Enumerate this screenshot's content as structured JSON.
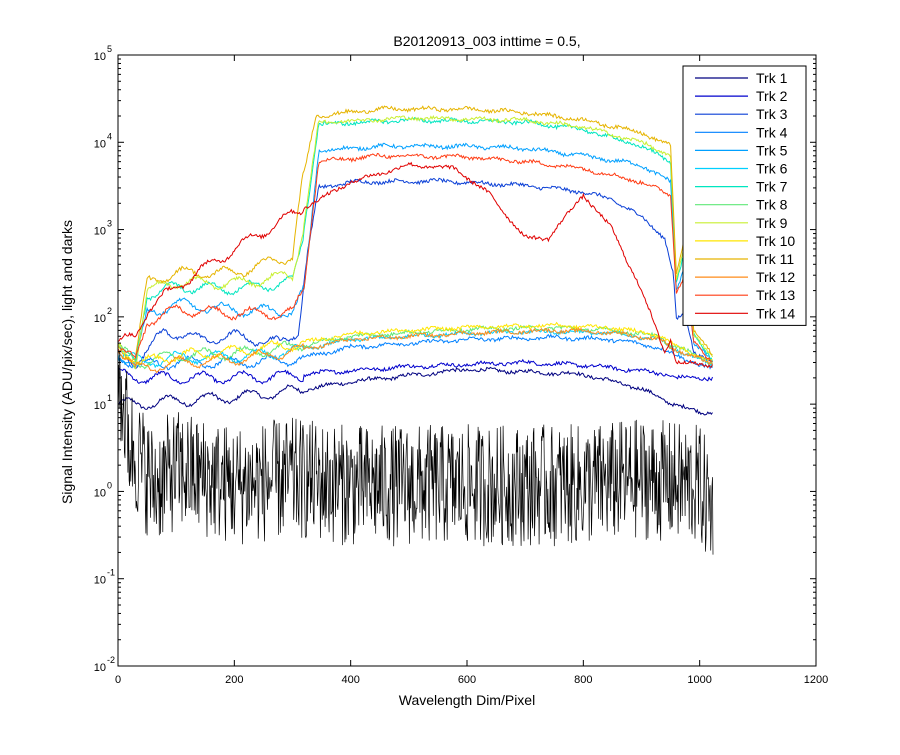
{
  "chart_data": {
    "type": "line",
    "title": "B20120913_003 inttime = 0.5,",
    "xlabel": "Wavelength Dim/Pixel",
    "ylabel": "Signal Intensity (ADU/pix/sec), light and darks",
    "xlim": [
      0,
      1200
    ],
    "ylim": [
      0.01,
      100000
    ],
    "yscale": "log",
    "grid": false,
    "legend_position": "top-right",
    "x_ticks": [
      "0",
      "200",
      "400",
      "600",
      "800",
      "1000",
      "1200"
    ],
    "y_ticks": [
      {
        "base": "10",
        "exp": "-2"
      },
      {
        "base": "10",
        "exp": "-1"
      },
      {
        "base": "10",
        "exp": "0"
      },
      {
        "base": "10",
        "exp": "1"
      },
      {
        "base": "10",
        "exp": "2"
      },
      {
        "base": "10",
        "exp": "3"
      },
      {
        "base": "10",
        "exp": "4"
      },
      {
        "base": "10",
        "exp": "5"
      }
    ],
    "series": [
      {
        "name": "Trk 1",
        "color": "#000080",
        "values": [
          [
            0,
            10
          ],
          [
            40,
            10
          ],
          [
            100,
            11
          ],
          [
            200,
            12
          ],
          [
            300,
            14
          ],
          [
            400,
            18
          ],
          [
            600,
            25
          ],
          [
            800,
            22
          ],
          [
            900,
            15
          ],
          [
            940,
            11
          ],
          [
            1000,
            8
          ],
          [
            1023,
            8
          ]
        ]
      },
      {
        "name": "Trk 2",
        "color": "#0000cd",
        "values": [
          [
            0,
            22
          ],
          [
            40,
            20
          ],
          [
            100,
            20
          ],
          [
            200,
            20
          ],
          [
            300,
            21
          ],
          [
            350,
            23
          ],
          [
            500,
            27
          ],
          [
            700,
            30
          ],
          [
            800,
            28
          ],
          [
            900,
            24
          ],
          [
            945,
            22
          ],
          [
            960,
            20
          ],
          [
            1023,
            20
          ]
        ]
      },
      {
        "name": "Trk 3",
        "color": "#0a3fd6",
        "values": [
          [
            0,
            40
          ],
          [
            30,
            30
          ],
          [
            50,
            40
          ],
          [
            80,
            70
          ],
          [
            140,
            55
          ],
          [
            200,
            60
          ],
          [
            280,
            50
          ],
          [
            310,
            70
          ],
          [
            325,
            500
          ],
          [
            345,
            3000
          ],
          [
            400,
            3500
          ],
          [
            550,
            3600
          ],
          [
            700,
            3200
          ],
          [
            800,
            2700
          ],
          [
            850,
            2200
          ],
          [
            900,
            1400
          ],
          [
            940,
            800
          ],
          [
            955,
            300
          ],
          [
            960,
            90
          ],
          [
            975,
            110
          ],
          [
            990,
            40
          ],
          [
            1023,
            30
          ]
        ]
      },
      {
        "name": "Trk 4",
        "color": "#0080ff",
        "values": [
          [
            0,
            35
          ],
          [
            40,
            28
          ],
          [
            100,
            30
          ],
          [
            200,
            30
          ],
          [
            300,
            32
          ],
          [
            400,
            45
          ],
          [
            600,
            55
          ],
          [
            750,
            58
          ],
          [
            850,
            55
          ],
          [
            930,
            45
          ],
          [
            950,
            38
          ],
          [
            1023,
            25
          ]
        ]
      },
      {
        "name": "Trk 5",
        "color": "#00a0ff",
        "values": [
          [
            0,
            38
          ],
          [
            30,
            28
          ],
          [
            50,
            110
          ],
          [
            100,
            140
          ],
          [
            200,
            120
          ],
          [
            300,
            115
          ],
          [
            320,
            200
          ],
          [
            345,
            8000
          ],
          [
            450,
            9000
          ],
          [
            600,
            9000
          ],
          [
            700,
            8500
          ],
          [
            800,
            7000
          ],
          [
            900,
            5500
          ],
          [
            950,
            3500
          ],
          [
            960,
            200
          ],
          [
            975,
            400
          ],
          [
            990,
            50
          ],
          [
            1023,
            30
          ]
        ]
      },
      {
        "name": "Trk 6",
        "color": "#00d0ff",
        "values": [
          [
            0,
            40
          ],
          [
            40,
            30
          ],
          [
            100,
            34
          ],
          [
            200,
            35
          ],
          [
            300,
            40
          ],
          [
            400,
            55
          ],
          [
            600,
            65
          ],
          [
            750,
            68
          ],
          [
            850,
            65
          ],
          [
            930,
            55
          ],
          [
            950,
            45
          ],
          [
            1023,
            28
          ]
        ]
      },
      {
        "name": "Trk 7",
        "color": "#00e6c0",
        "values": [
          [
            0,
            42
          ],
          [
            30,
            30
          ],
          [
            50,
            180
          ],
          [
            100,
            220
          ],
          [
            200,
            210
          ],
          [
            300,
            250
          ],
          [
            318,
            800
          ],
          [
            345,
            16000
          ],
          [
            500,
            18000
          ],
          [
            700,
            17000
          ],
          [
            800,
            14000
          ],
          [
            900,
            9000
          ],
          [
            950,
            6000
          ],
          [
            960,
            250
          ],
          [
            975,
            600
          ],
          [
            990,
            60
          ],
          [
            1023,
            32
          ]
        ]
      },
      {
        "name": "Trk 8",
        "color": "#60e878",
        "values": [
          [
            0,
            42
          ],
          [
            40,
            30
          ],
          [
            100,
            36
          ],
          [
            200,
            38
          ],
          [
            300,
            45
          ],
          [
            400,
            60
          ],
          [
            600,
            72
          ],
          [
            750,
            75
          ],
          [
            850,
            70
          ],
          [
            930,
            60
          ],
          [
            950,
            48
          ],
          [
            1023,
            30
          ]
        ]
      },
      {
        "name": "Trk 9",
        "color": "#c8ef30",
        "values": [
          [
            0,
            44
          ],
          [
            30,
            30
          ],
          [
            50,
            200
          ],
          [
            100,
            250
          ],
          [
            200,
            240
          ],
          [
            300,
            300
          ],
          [
            318,
            1000
          ],
          [
            345,
            17000
          ],
          [
            500,
            19000
          ],
          [
            700,
            18000
          ],
          [
            800,
            15000
          ],
          [
            900,
            10000
          ],
          [
            950,
            7000
          ],
          [
            960,
            260
          ],
          [
            975,
            700
          ],
          [
            990,
            65
          ],
          [
            1023,
            34
          ]
        ]
      },
      {
        "name": "Trk 10",
        "color": "#ffe600",
        "values": [
          [
            0,
            44
          ],
          [
            40,
            30
          ],
          [
            100,
            36
          ],
          [
            200,
            40
          ],
          [
            300,
            48
          ],
          [
            400,
            64
          ],
          [
            600,
            76
          ],
          [
            750,
            80
          ],
          [
            850,
            75
          ],
          [
            930,
            62
          ],
          [
            950,
            50
          ],
          [
            1023,
            30
          ]
        ]
      },
      {
        "name": "Trk 11",
        "color": "#e6b400",
        "values": [
          [
            0,
            45
          ],
          [
            30,
            32
          ],
          [
            50,
            250
          ],
          [
            100,
            320
          ],
          [
            200,
            320
          ],
          [
            300,
            500
          ],
          [
            315,
            3000
          ],
          [
            340,
            20000
          ],
          [
            450,
            24000
          ],
          [
            600,
            24000
          ],
          [
            700,
            22000
          ],
          [
            800,
            18000
          ],
          [
            900,
            13000
          ],
          [
            950,
            9000
          ],
          [
            960,
            300
          ],
          [
            975,
            900
          ],
          [
            990,
            70
          ],
          [
            1023,
            35
          ]
        ]
      },
      {
        "name": "Trk 12",
        "color": "#ff8c1a",
        "values": [
          [
            0,
            45
          ],
          [
            30,
            25
          ],
          [
            100,
            30
          ],
          [
            200,
            32
          ],
          [
            300,
            40
          ],
          [
            400,
            55
          ],
          [
            600,
            65
          ],
          [
            750,
            70
          ],
          [
            850,
            66
          ],
          [
            930,
            55
          ],
          [
            950,
            45
          ],
          [
            1023,
            28
          ]
        ]
      },
      {
        "name": "Trk 13",
        "color": "#ff3c14",
        "values": [
          [
            0,
            45
          ],
          [
            30,
            30
          ],
          [
            50,
            90
          ],
          [
            100,
            120
          ],
          [
            200,
            110
          ],
          [
            300,
            110
          ],
          [
            320,
            220
          ],
          [
            345,
            6000
          ],
          [
            450,
            7000
          ],
          [
            600,
            6800
          ],
          [
            700,
            6000
          ],
          [
            800,
            5000
          ],
          [
            900,
            3500
          ],
          [
            950,
            2500
          ],
          [
            960,
            200
          ],
          [
            975,
            300
          ],
          [
            990,
            50
          ],
          [
            1023,
            30
          ]
        ]
      },
      {
        "name": "Trk 14",
        "color": "#e00000",
        "values": [
          [
            0,
            50
          ],
          [
            30,
            60
          ],
          [
            50,
            120
          ],
          [
            100,
            220
          ],
          [
            200,
            600
          ],
          [
            300,
            1500
          ],
          [
            400,
            3500
          ],
          [
            500,
            5500
          ],
          [
            580,
            5000
          ],
          [
            640,
            2500
          ],
          [
            700,
            800
          ],
          [
            740,
            800
          ],
          [
            800,
            2500
          ],
          [
            850,
            1000
          ],
          [
            900,
            200
          ],
          [
            940,
            40
          ],
          [
            950,
            55
          ],
          [
            960,
            30
          ],
          [
            1023,
            28
          ]
        ]
      },
      {
        "name": "",
        "color": "#000000",
        "values": [
          [
            0,
            20
          ],
          [
            20,
            3
          ],
          [
            60,
            1
          ],
          [
            100,
            1.5
          ],
          [
            200,
            1
          ],
          [
            300,
            1.2
          ],
          [
            400,
            1
          ],
          [
            500,
            1
          ],
          [
            600,
            1
          ],
          [
            700,
            1
          ],
          [
            800,
            1
          ],
          [
            900,
            1.2
          ],
          [
            1000,
            1
          ],
          [
            1023,
            0.5
          ]
        ]
      }
    ]
  }
}
